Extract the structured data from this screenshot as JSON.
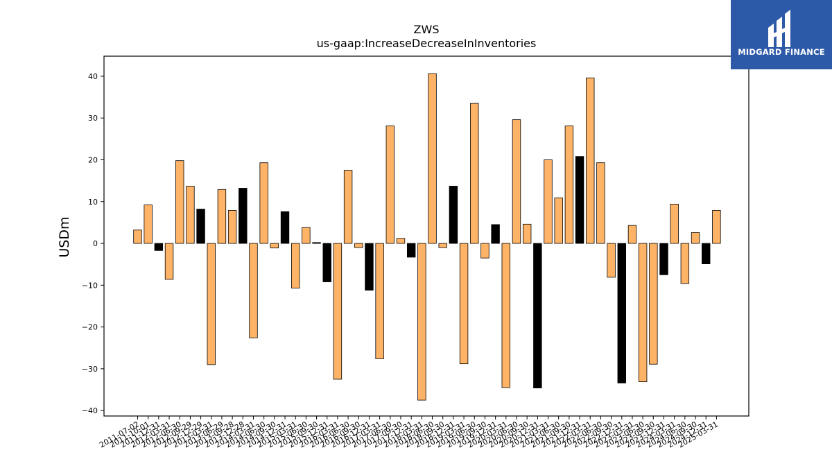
{
  "logo": {
    "text": "MIDGARD FINANCE",
    "icon": "midgard-finance-logo-icon"
  },
  "chart_data": {
    "type": "bar",
    "title": "ZWS",
    "subtitle": "us-gaap:IncreaseDecreaseInInventories",
    "ylabel": "USDm",
    "xlabel": "",
    "ylim": [
      -41.3,
      44.8
    ],
    "yticks": [
      -40,
      -30,
      -20,
      -10,
      0,
      10,
      20,
      30,
      40
    ],
    "grid": false,
    "colors": {
      "orange": "#ffb366",
      "black": "#000000"
    },
    "categories": [
      "2011-07-02",
      "2011-10-01",
      "2011-12-31",
      "2012-03-31",
      "2012-06-30",
      "2012-09-29",
      "2012-12-29",
      "2013-03-31",
      "2013-06-29",
      "2013-09-28",
      "2013-12-28",
      "2014-03-31",
      "2014-06-30",
      "2014-09-30",
      "2014-12-31",
      "2015-03-31",
      "2015-06-30",
      "2015-09-30",
      "2015-12-31",
      "2016-03-31",
      "2016-06-30",
      "2016-09-30",
      "2016-12-31",
      "2017-03-31",
      "2017-06-30",
      "2017-09-30",
      "2017-12-31",
      "2018-03-31",
      "2018-06-30",
      "2018-09-30",
      "2018-12-31",
      "2019-03-31",
      "2019-06-30",
      "2019-09-30",
      "2019-12-31",
      "2020-03-31",
      "2020-06-30",
      "2020-09-30",
      "2020-12-31",
      "2021-03-31",
      "2021-06-30",
      "2021-09-30",
      "2021-12-31",
      "2022-03-31",
      "2022-06-30",
      "2022-09-30",
      "2022-12-31",
      "2023-03-31",
      "2023-06-30",
      "2023-09-30",
      "2023-12-31",
      "2024-03-31",
      "2024-06-30",
      "2024-09-30",
      "2024-12-31",
      "2025-03-31"
    ],
    "values": [
      3.2,
      9.2,
      -1.7,
      -8.6,
      19.8,
      13.7,
      8.2,
      -29.0,
      12.9,
      7.9,
      13.2,
      -22.6,
      19.3,
      -1.1,
      7.6,
      -10.7,
      3.8,
      0.2,
      -9.2,
      -32.5,
      17.5,
      -1.0,
      -11.2,
      -27.6,
      28.1,
      1.2,
      -3.3,
      -37.5,
      40.6,
      -1.0,
      13.7,
      -28.8,
      33.5,
      -3.5,
      4.5,
      -34.5,
      29.6,
      4.6,
      -34.6,
      20.0,
      10.9,
      28.1,
      20.8,
      39.6,
      19.3,
      -8.1,
      -33.4,
      4.3,
      -33.1,
      -28.9,
      -7.5,
      9.4,
      -9.6,
      2.6,
      -4.9,
      7.9
    ],
    "bar_colors": [
      "orange",
      "orange",
      "black",
      "orange",
      "orange",
      "orange",
      "black",
      "orange",
      "orange",
      "orange",
      "black",
      "orange",
      "orange",
      "orange",
      "black",
      "orange",
      "orange",
      "black",
      "black",
      "orange",
      "orange",
      "orange",
      "black",
      "orange",
      "orange",
      "orange",
      "black",
      "orange",
      "orange",
      "orange",
      "black",
      "orange",
      "orange",
      "orange",
      "black",
      "orange",
      "orange",
      "orange",
      "black",
      "orange",
      "orange",
      "orange",
      "black",
      "orange",
      "orange",
      "orange",
      "black",
      "orange",
      "orange",
      "orange",
      "black",
      "orange",
      "orange",
      "orange",
      "black",
      "orange"
    ]
  }
}
